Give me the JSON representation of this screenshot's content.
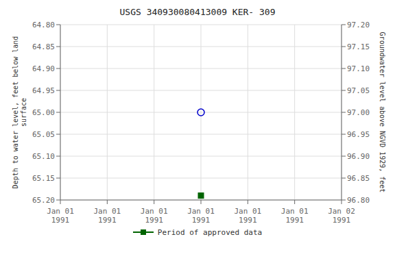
{
  "chart_data": {
    "type": "scatter",
    "title": "USGS 340930080413009 KER- 309",
    "categories": [
      "Jan 01\n1991",
      "Jan 01\n1991",
      "Jan 01\n1991",
      "Jan 01\n1991",
      "Jan 01\n1991",
      "Jan 01\n1991",
      "Jan 02\n1991"
    ],
    "ylabel": "Depth to water level, feet below land\nsurface",
    "y2label": "Groundwater level above NGVD 1929, feet",
    "ylim": [
      65.2,
      64.8
    ],
    "yticks": [
      {
        "value": 64.8,
        "label": "64.80"
      },
      {
        "value": 64.85,
        "label": "64.85"
      },
      {
        "value": 64.9,
        "label": "64.90"
      },
      {
        "value": 64.95,
        "label": "64.95"
      },
      {
        "value": 65.0,
        "label": "65.00"
      },
      {
        "value": 65.05,
        "label": "65.05"
      },
      {
        "value": 65.1,
        "label": "65.10"
      },
      {
        "value": 65.15,
        "label": "65.15"
      },
      {
        "value": 65.2,
        "label": "65.20"
      }
    ],
    "y2lim": [
      96.8,
      97.2
    ],
    "y2ticks": [
      {
        "value": 96.8,
        "label": "96.80"
      },
      {
        "value": 96.85,
        "label": "96.85"
      },
      {
        "value": 96.9,
        "label": "96.90"
      },
      {
        "value": 96.95,
        "label": "96.95"
      },
      {
        "value": 97.0,
        "label": "97.00"
      },
      {
        "value": 97.05,
        "label": "97.05"
      },
      {
        "value": 97.1,
        "label": "97.10"
      },
      {
        "value": 97.15,
        "label": "97.15"
      },
      {
        "value": 97.2,
        "label": "97.20"
      }
    ],
    "series": [
      {
        "color": "#0000cc",
        "marker": "circle",
        "values": [
          null,
          null,
          null,
          65.0,
          null,
          null,
          null
        ]
      },
      {
        "name": "Period of approved data",
        "color": "#006400",
        "marker": "square",
        "values": [
          null,
          null,
          null,
          65.19,
          null,
          null,
          null
        ]
      }
    ],
    "grid": true,
    "legend": "bottom"
  }
}
